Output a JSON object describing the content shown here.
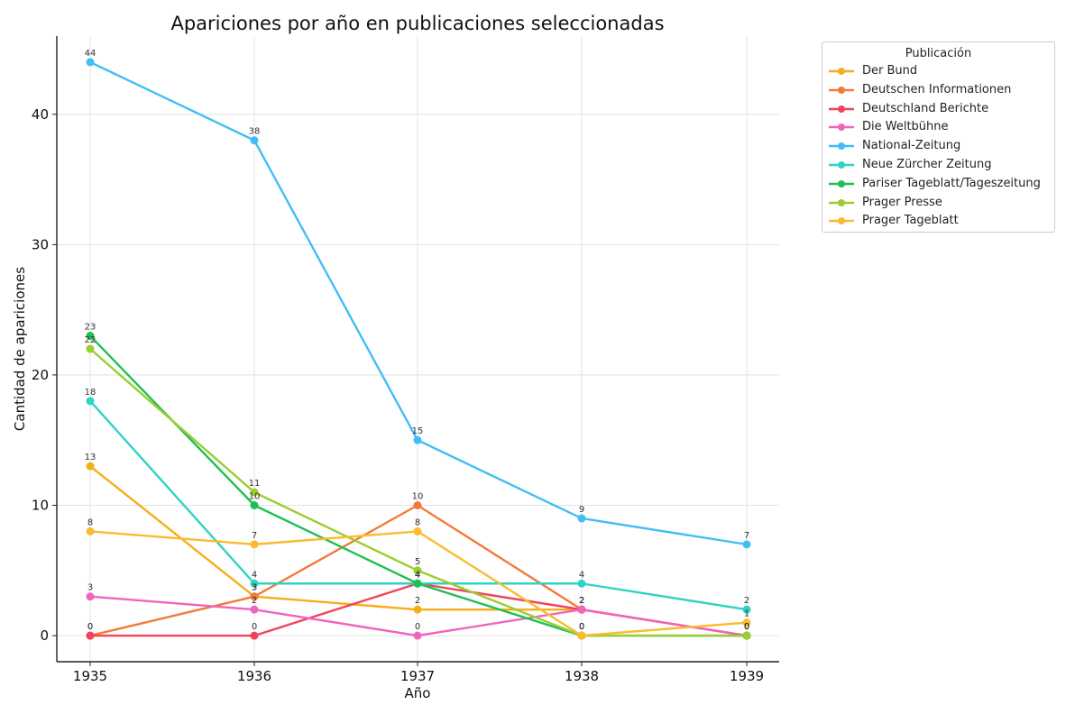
{
  "chart_data": {
    "type": "line",
    "title": "Apariciones por año en publicaciones seleccionadas",
    "xlabel": "Año",
    "ylabel": "Cantidad de apariciones",
    "x": [
      "1935",
      "1936",
      "1937",
      "1938",
      "1939"
    ],
    "ylim": [
      -2,
      46
    ],
    "yticks": [
      0,
      10,
      20,
      30,
      40
    ],
    "grid": true,
    "legend_title": "Publicación",
    "legend_position": "upper-right-outside",
    "series": [
      {
        "name": "Der Bund",
        "color": "#f5ae1b",
        "values": [
          13,
          3,
          2,
          2,
          null
        ]
      },
      {
        "name": "Deutschen Informationen",
        "color": "#f47a3a",
        "values": [
          0,
          3,
          10,
          2,
          0
        ]
      },
      {
        "name": "Deutschland Berichte",
        "color": "#f2435a",
        "values": [
          0,
          0,
          4,
          2,
          0
        ]
      },
      {
        "name": "Die Weltbühne",
        "color": "#f064bd",
        "values": [
          3,
          2,
          0,
          2,
          0
        ]
      },
      {
        "name": "National-Zeitung",
        "color": "#43bdf5",
        "values": [
          44,
          38,
          15,
          9,
          7
        ]
      },
      {
        "name": "Neue Zürcher Zeitung",
        "color": "#2fd3c4",
        "values": [
          18,
          4,
          4,
          4,
          2
        ]
      },
      {
        "name": "Pariser Tageblatt/Tageszeitung",
        "color": "#1fbf55",
        "values": [
          23,
          10,
          4,
          0,
          0
        ]
      },
      {
        "name": "Prager Presse",
        "color": "#9acd2f",
        "values": [
          22,
          11,
          5,
          0,
          0
        ]
      },
      {
        "name": "Prager Tageblatt",
        "color": "#fbbb2f",
        "values": [
          8,
          7,
          8,
          0,
          1
        ]
      }
    ]
  }
}
